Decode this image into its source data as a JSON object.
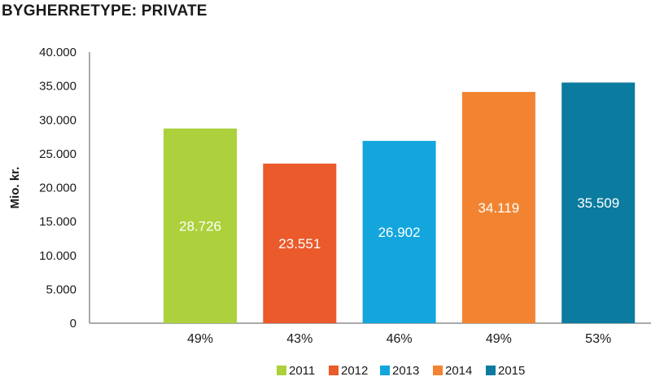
{
  "chart_data": {
    "type": "bar",
    "title": "BYGHERRETYPE: PRIVATE",
    "ylabel": "Mio. kr.",
    "xlabel": "",
    "ylim": [
      0,
      40000
    ],
    "yticks": [
      0,
      5000,
      10000,
      15000,
      20000,
      25000,
      30000,
      35000,
      40000
    ],
    "ytick_labels": [
      "0",
      "5.000",
      "10.000",
      "15.000",
      "20.000",
      "25.000",
      "30.000",
      "35.000",
      "40.000"
    ],
    "categories": [
      "2011",
      "2012",
      "2013",
      "2014",
      "2015"
    ],
    "values": [
      28726,
      23551,
      26902,
      34119,
      35509
    ],
    "value_labels": [
      "28.726",
      "23.551",
      "26.902",
      "34.119",
      "35.509"
    ],
    "category_labels": [
      "49%",
      "43%",
      "46%",
      "49%",
      "53%"
    ],
    "colors": [
      "#acd13c",
      "#ea5a2a",
      "#13a6dc",
      "#f28431",
      "#0b7b9f"
    ],
    "grid": false,
    "legend_position": "bottom"
  }
}
